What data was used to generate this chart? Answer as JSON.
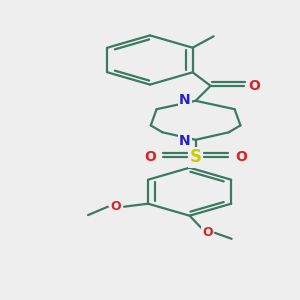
{
  "bg_color": "#eeeeee",
  "bond_color": "#3a7a60",
  "bond_width": 1.6,
  "N_color": "#2222cc",
  "O_color": "#dd2222",
  "S_color": "#cccc00",
  "font_size_atom": 9,
  "fig_size": [
    3.0,
    3.0
  ],
  "dpi": 100,
  "xlim": [
    0.25,
    0.75
  ],
  "ylim": [
    0.02,
    1.02
  ]
}
